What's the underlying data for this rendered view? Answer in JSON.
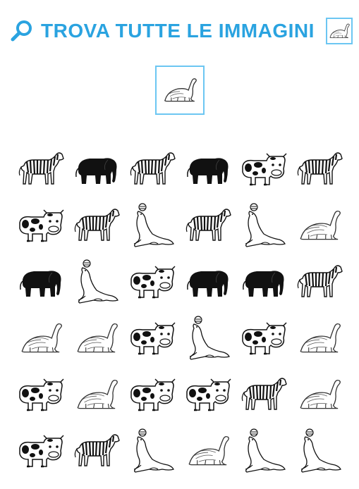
{
  "title": "TROVA TUTTE LE IMMAGINI",
  "target": "dinosaur",
  "grid": [
    [
      "zebra",
      "elephant",
      "zebra",
      "elephant",
      "cow",
      "zebra"
    ],
    [
      "cow",
      "zebra",
      "seal",
      "zebra",
      "seal",
      "dinosaur"
    ],
    [
      "elephant",
      "seal",
      "cow",
      "elephant",
      "elephant",
      "zebra"
    ],
    [
      "dinosaur",
      "dinosaur",
      "cow",
      "seal",
      "cow",
      "dinosaur"
    ],
    [
      "cow",
      "dinosaur",
      "cow",
      "cow",
      "zebra",
      "dinosaur"
    ],
    [
      "cow",
      "zebra",
      "seal",
      "dinosaur",
      "seal",
      "seal"
    ]
  ]
}
